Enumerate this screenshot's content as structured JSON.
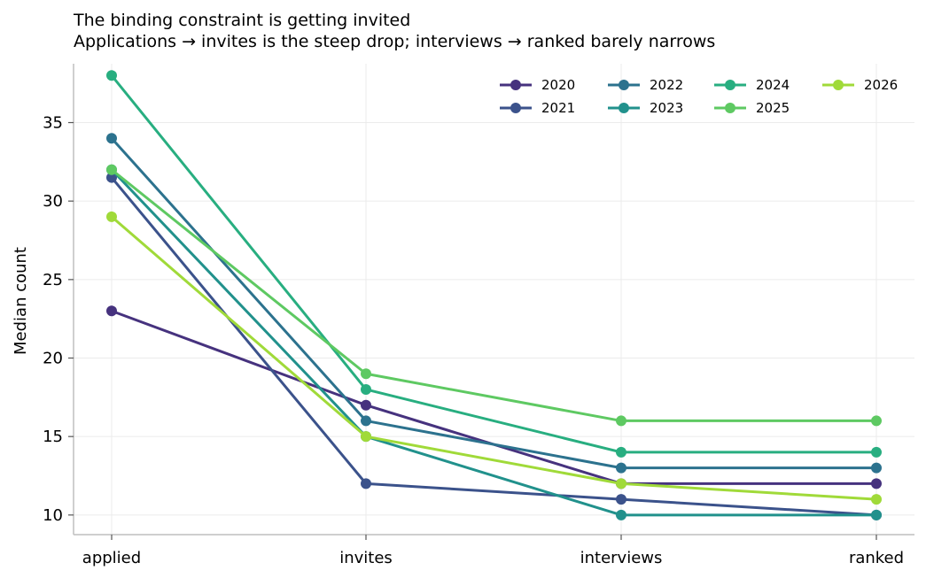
{
  "chart_data": {
    "type": "line",
    "title": "The binding constraint is getting invited",
    "subtitle": "Applications → invites is the steep drop; interviews → ranked barely narrows",
    "xlabel": "",
    "ylabel": "Median count",
    "categories": [
      "applied",
      "invites",
      "interviews",
      "ranked"
    ],
    "ylim": [
      8.75,
      38.75
    ],
    "yticks": [
      10,
      15,
      20,
      25,
      30,
      35
    ],
    "grid": true,
    "legend": {
      "placement": "top-right",
      "columns": 4
    },
    "series": [
      {
        "name": "2020",
        "color": "#46327e",
        "values": [
          23,
          17,
          12,
          12
        ]
      },
      {
        "name": "2021",
        "color": "#3b528b",
        "values": [
          31.5,
          12,
          11,
          10
        ]
      },
      {
        "name": "2022",
        "color": "#2c728e",
        "values": [
          34,
          16,
          13,
          13
        ]
      },
      {
        "name": "2023",
        "color": "#21918c",
        "values": [
          32,
          15,
          10,
          10
        ]
      },
      {
        "name": "2024",
        "color": "#28ae80",
        "values": [
          38,
          18,
          14,
          14
        ]
      },
      {
        "name": "2025",
        "color": "#5ec962",
        "values": [
          32,
          19,
          16,
          16
        ]
      },
      {
        "name": "2026",
        "color": "#a0da39",
        "values": [
          29,
          15,
          12,
          11
        ]
      }
    ]
  }
}
